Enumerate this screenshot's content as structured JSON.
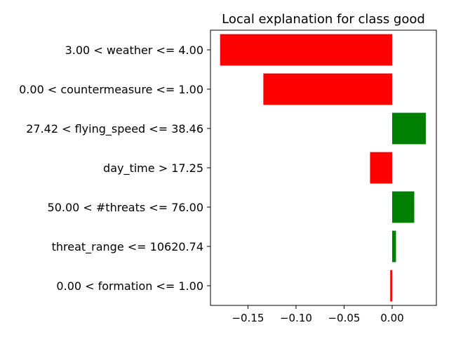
{
  "chart_data": {
    "type": "bar",
    "orientation": "horizontal",
    "title": "Local explanation for class good",
    "xlabel": "",
    "ylabel": "",
    "categories": [
      "3.00 < weather <= 4.00",
      "0.00 < countermeasure <= 1.00",
      "27.42 < flying_speed <= 38.46",
      "day_time > 17.25",
      "50.00 < #threats <= 76.00",
      "threat_range <= 10620.74",
      "0.00 < formation <= 1.00"
    ],
    "values": [
      -0.179,
      -0.134,
      0.035,
      -0.023,
      0.023,
      0.004,
      -0.002
    ],
    "xlim": [
      -0.189,
      0.046
    ],
    "xticks": [
      -0.15,
      -0.1,
      -0.05,
      0.0
    ],
    "xtick_labels": [
      "−0.15",
      "−0.10",
      "−0.05",
      "0.00"
    ],
    "colors": {
      "positive": "#008000",
      "negative": "#ff0000"
    },
    "grid": false,
    "legend": "none"
  }
}
